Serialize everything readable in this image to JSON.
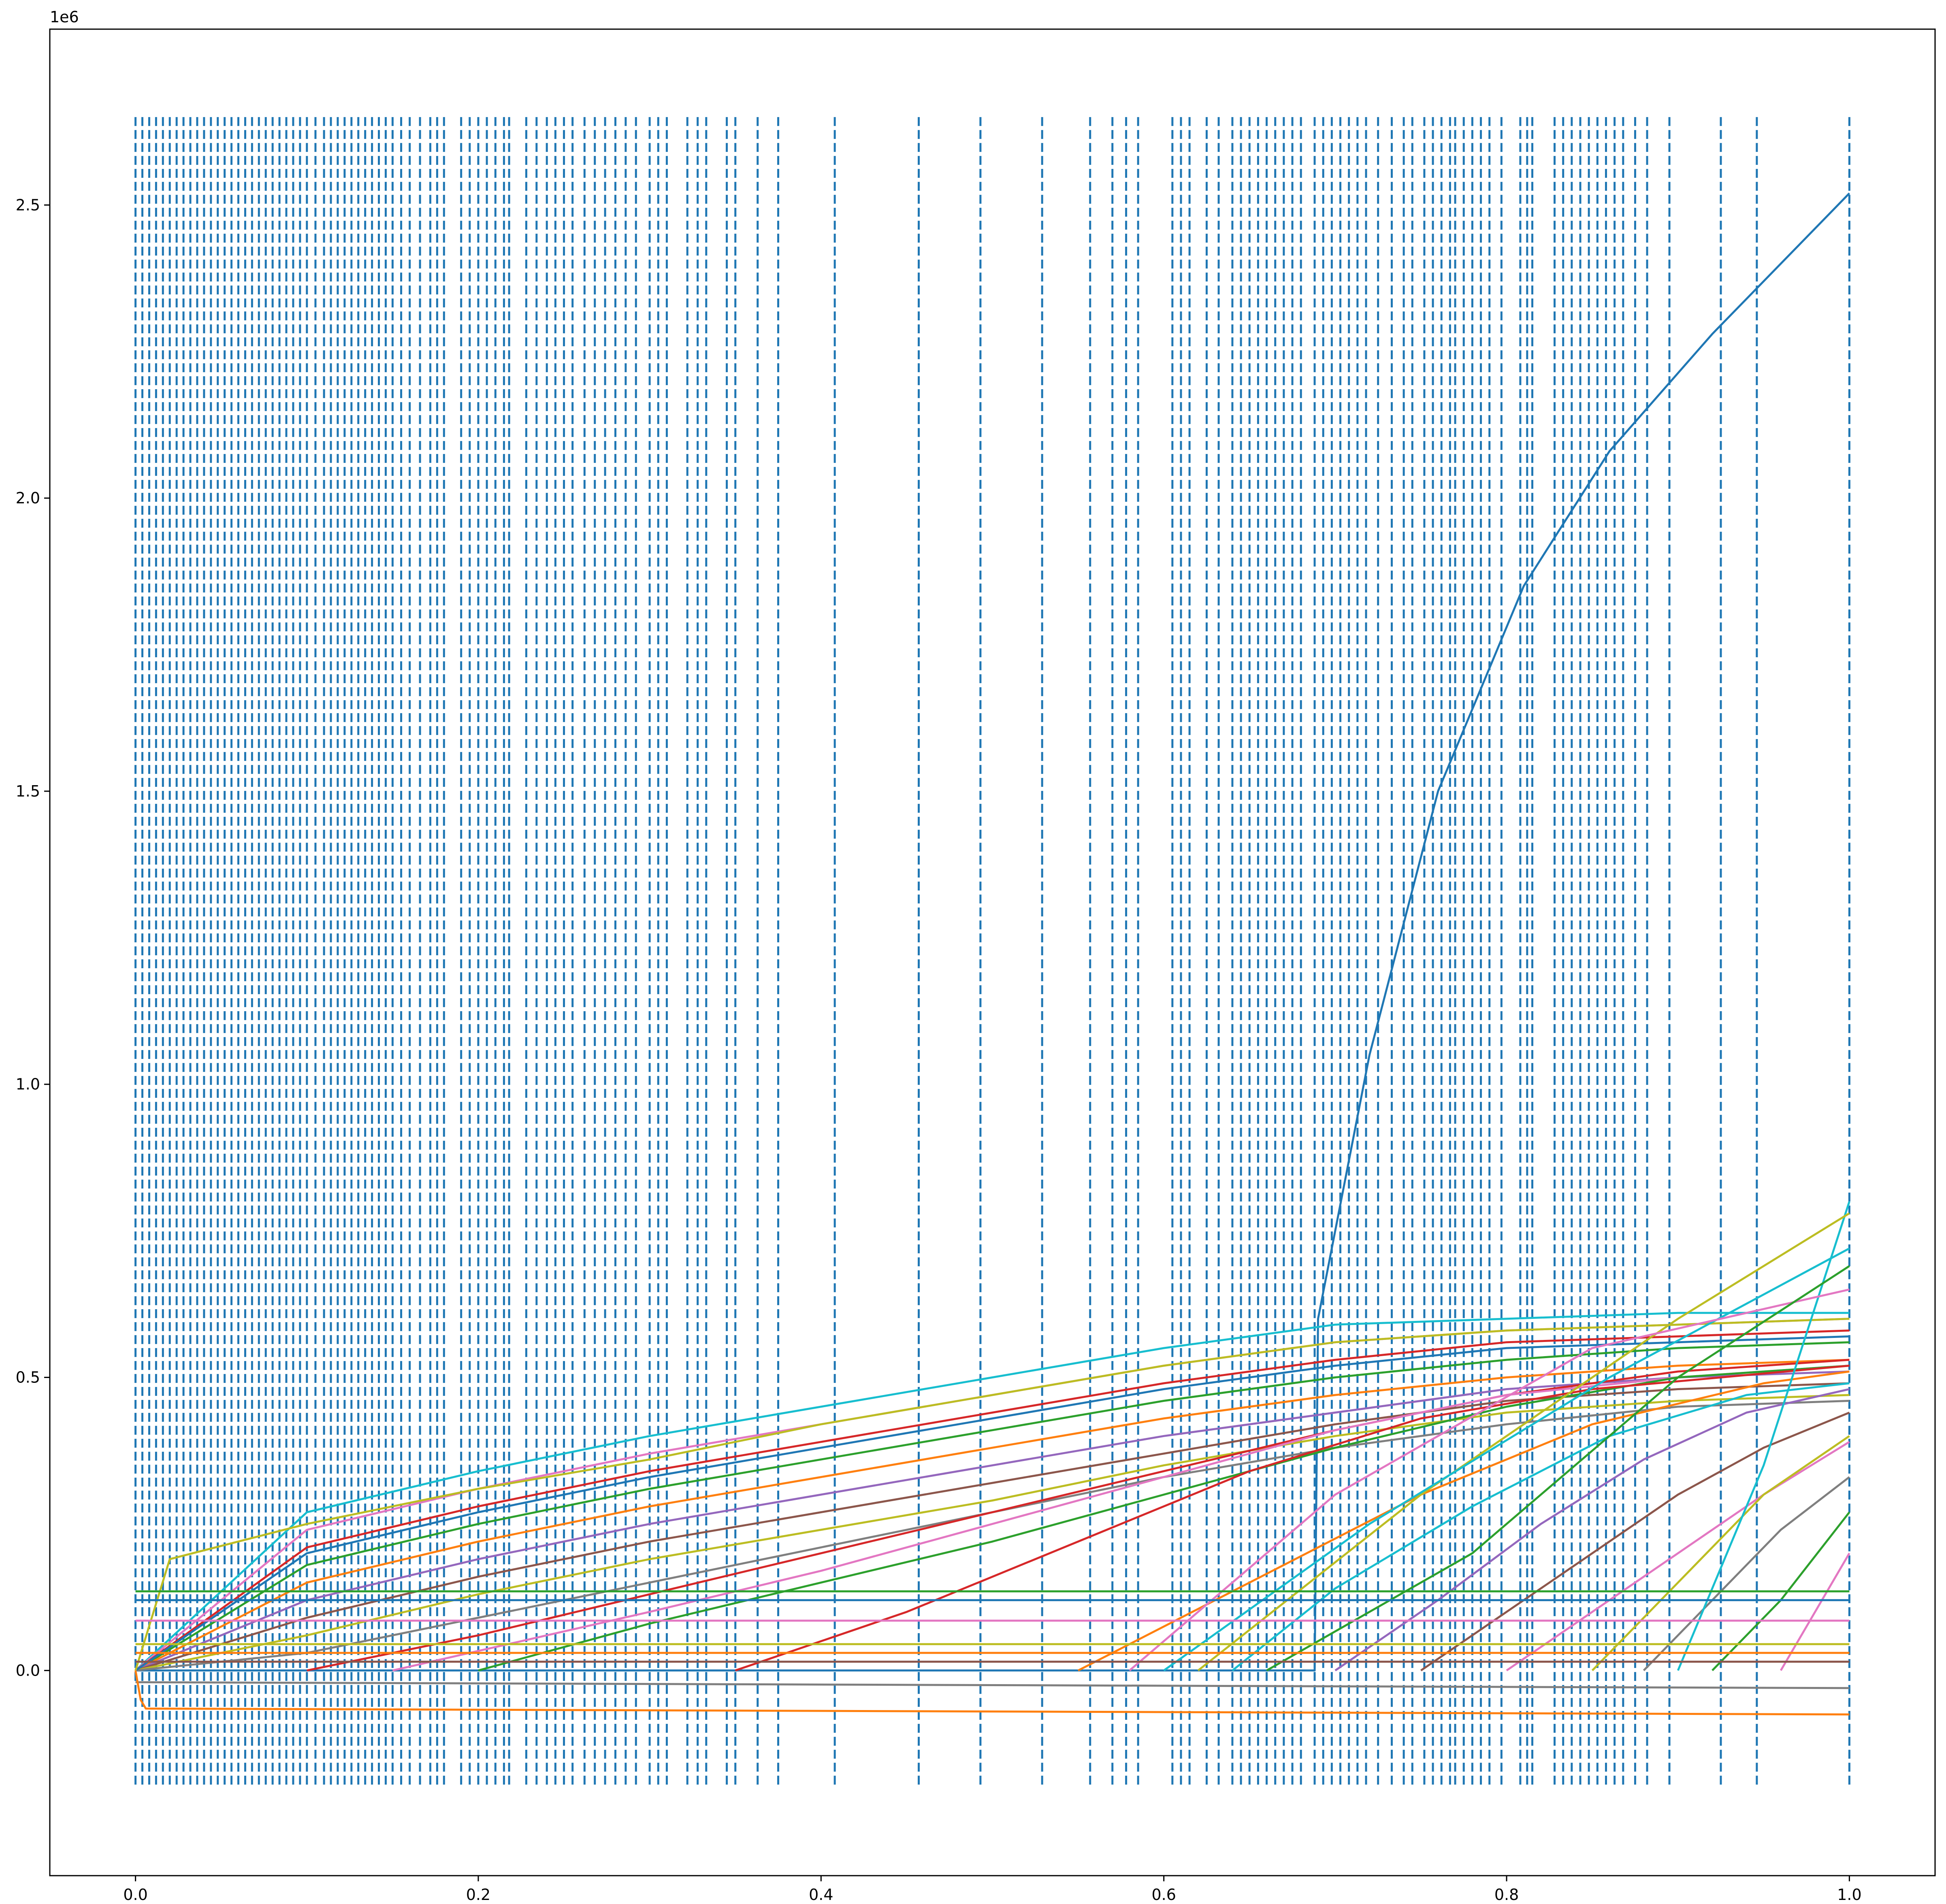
{
  "chart_data": {
    "type": "line",
    "title": "",
    "xlabel": "",
    "ylabel": "",
    "y_offset_label": "1e6",
    "xlim": [
      -0.05,
      1.05
    ],
    "ylim": [
      -0.35,
      2.8
    ],
    "y_unit_scale": 1000000,
    "x_ticks": [
      0.0,
      0.2,
      0.4,
      0.6,
      0.8,
      1.0
    ],
    "x_tick_labels": [
      "0.0",
      "0.2",
      "0.4",
      "0.6",
      "0.8",
      "1.0"
    ],
    "y_ticks": [
      0.0,
      0.5,
      1.0,
      1.5,
      2.0,
      2.5
    ],
    "y_tick_labels": [
      "0.0",
      "0.5",
      "1.0",
      "1.5",
      "2.0",
      "2.5"
    ],
    "grid": false,
    "legend": "none",
    "vertical_dashed_lines": {
      "color": "#1f77b4",
      "ymin": -0.2,
      "ymax": 2.65,
      "note_dense_region": [
        0.0,
        0.1
      ],
      "x": [
        0.0,
        0.004,
        0.008,
        0.012,
        0.016,
        0.02,
        0.024,
        0.028,
        0.032,
        0.036,
        0.04,
        0.044,
        0.048,
        0.052,
        0.056,
        0.06,
        0.064,
        0.068,
        0.072,
        0.076,
        0.08,
        0.084,
        0.088,
        0.092,
        0.096,
        0.1,
        0.105,
        0.11,
        0.114,
        0.118,
        0.122,
        0.126,
        0.13,
        0.134,
        0.138,
        0.142,
        0.146,
        0.15,
        0.155,
        0.16,
        0.166,
        0.172,
        0.176,
        0.18,
        0.19,
        0.195,
        0.2,
        0.205,
        0.21,
        0.215,
        0.218,
        0.228,
        0.234,
        0.24,
        0.245,
        0.25,
        0.255,
        0.262,
        0.268,
        0.274,
        0.28,
        0.286,
        0.292,
        0.3,
        0.305,
        0.31,
        0.322,
        0.328,
        0.333,
        0.345,
        0.35,
        0.363,
        0.375,
        0.408,
        0.457,
        0.493,
        0.529,
        0.557,
        0.57,
        0.578,
        0.585,
        0.605,
        0.61,
        0.615,
        0.625,
        0.632,
        0.64,
        0.645,
        0.65,
        0.655,
        0.66,
        0.665,
        0.67,
        0.675,
        0.68,
        0.688,
        0.693,
        0.698,
        0.703,
        0.708,
        0.713,
        0.718,
        0.725,
        0.733,
        0.74,
        0.745,
        0.752,
        0.757,
        0.762,
        0.767,
        0.77,
        0.775,
        0.78,
        0.785,
        0.79,
        0.797,
        0.808,
        0.812,
        0.815,
        0.828,
        0.833,
        0.838,
        0.843,
        0.848,
        0.853,
        0.858,
        0.863,
        0.868,
        0.875,
        0.882,
        0.895,
        0.925,
        0.946,
        1.0
      ]
    },
    "series": [
      {
        "color": "#1f77b4",
        "x": [
          0.0,
          0.688,
          0.69,
          0.72,
          0.76,
          0.81,
          0.86,
          0.92,
          1.0
        ],
        "values": [
          0.0,
          0.0,
          0.6,
          1.05,
          1.5,
          1.85,
          2.08,
          2.28,
          2.52
        ]
      },
      {
        "color": "#17becf",
        "x": [
          0.0,
          0.1,
          0.2,
          0.3,
          0.4,
          0.5,
          0.6,
          0.7,
          0.8,
          0.9,
          1.0
        ],
        "values": [
          0.0,
          0.27,
          0.34,
          0.4,
          0.45,
          0.5,
          0.55,
          0.59,
          0.6,
          0.61,
          0.61
        ]
      },
      {
        "color": "#e377c2",
        "x": [
          0.0,
          0.1,
          0.2,
          0.3,
          0.4,
          0.5,
          0.6,
          0.7,
          0.8,
          0.9,
          1.0
        ],
        "values": [
          0.0,
          0.24,
          0.31,
          0.37,
          0.42,
          0.47,
          0.52,
          0.56,
          0.58,
          0.59,
          0.6
        ]
      },
      {
        "color": "#d62728",
        "x": [
          0.0,
          0.1,
          0.2,
          0.3,
          0.4,
          0.5,
          0.6,
          0.7,
          0.8,
          0.9,
          1.0
        ],
        "values": [
          0.0,
          0.21,
          0.28,
          0.34,
          0.39,
          0.44,
          0.49,
          0.53,
          0.56,
          0.57,
          0.58
        ]
      },
      {
        "color": "#2ca02c",
        "x": [
          0.0,
          0.1,
          0.2,
          0.3,
          0.4,
          0.5,
          0.6,
          0.7,
          0.8,
          0.9,
          1.0
        ],
        "values": [
          0.0,
          0.18,
          0.25,
          0.31,
          0.36,
          0.41,
          0.46,
          0.5,
          0.53,
          0.55,
          0.56
        ]
      },
      {
        "color": "#ff7f0e",
        "x": [
          0.0,
          0.1,
          0.2,
          0.3,
          0.4,
          0.5,
          0.6,
          0.7,
          0.8,
          0.9,
          1.0
        ],
        "values": [
          0.0,
          0.15,
          0.22,
          0.28,
          0.33,
          0.38,
          0.43,
          0.47,
          0.5,
          0.52,
          0.53
        ]
      },
      {
        "color": "#9467bd",
        "x": [
          0.0,
          0.1,
          0.2,
          0.3,
          0.4,
          0.5,
          0.6,
          0.7,
          0.8,
          0.9,
          1.0
        ],
        "values": [
          0.0,
          0.12,
          0.19,
          0.25,
          0.3,
          0.35,
          0.4,
          0.44,
          0.48,
          0.5,
          0.51
        ]
      },
      {
        "color": "#8c564b",
        "x": [
          0.0,
          0.1,
          0.2,
          0.3,
          0.4,
          0.5,
          0.6,
          0.7,
          0.8,
          0.9,
          1.0
        ],
        "values": [
          0.0,
          0.09,
          0.16,
          0.22,
          0.27,
          0.32,
          0.37,
          0.42,
          0.46,
          0.48,
          0.49
        ]
      },
      {
        "color": "#bcbd22",
        "x": [
          0.0,
          0.1,
          0.2,
          0.3,
          0.4,
          0.5,
          0.6,
          0.7,
          0.8,
          0.9,
          1.0
        ],
        "values": [
          0.0,
          0.06,
          0.13,
          0.19,
          0.24,
          0.29,
          0.35,
          0.4,
          0.44,
          0.46,
          0.47
        ]
      },
      {
        "color": "#7f7f7f",
        "x": [
          0.0,
          0.1,
          0.2,
          0.3,
          0.4,
          0.5,
          0.6,
          0.7,
          0.8,
          0.9,
          1.0
        ],
        "values": [
          0.0,
          0.03,
          0.09,
          0.15,
          0.21,
          0.27,
          0.33,
          0.38,
          0.42,
          0.45,
          0.46
        ]
      },
      {
        "color": "#1f77b4",
        "x": [
          0.0,
          0.1,
          0.2,
          0.3,
          0.4,
          0.5,
          0.6,
          0.7,
          0.8,
          0.9,
          1.0
        ],
        "values": [
          0.0,
          0.2,
          0.27,
          0.33,
          0.38,
          0.43,
          0.48,
          0.52,
          0.55,
          0.56,
          0.57
        ]
      },
      {
        "color": "#bcbd22",
        "x": [
          0.0,
          0.02,
          0.1,
          0.2,
          0.3,
          0.4,
          0.5,
          0.6,
          0.7,
          0.8,
          0.9,
          1.0
        ],
        "values": [
          0.0,
          0.19,
          0.25,
          0.31,
          0.36,
          0.42,
          0.47,
          0.52,
          0.56,
          0.58,
          0.59,
          0.6
        ]
      },
      {
        "color": "#d62728",
        "x": [
          0.1,
          0.2,
          0.3,
          0.4,
          0.5,
          0.6,
          0.7,
          0.8,
          0.9,
          1.0
        ],
        "values": [
          0.0,
          0.06,
          0.13,
          0.2,
          0.27,
          0.34,
          0.41,
          0.47,
          0.51,
          0.53
        ]
      },
      {
        "color": "#e377c2",
        "x": [
          0.15,
          0.3,
          0.4,
          0.5,
          0.6,
          0.7,
          0.8,
          0.9,
          1.0
        ],
        "values": [
          0.0,
          0.1,
          0.17,
          0.25,
          0.33,
          0.41,
          0.47,
          0.5,
          0.52
        ]
      },
      {
        "color": "#2ca02c",
        "x": [
          0.2,
          0.3,
          0.4,
          0.5,
          0.6,
          0.7,
          0.8,
          0.9,
          1.0
        ],
        "values": [
          0.0,
          0.08,
          0.15,
          0.22,
          0.3,
          0.38,
          0.45,
          0.5,
          0.52
        ]
      },
      {
        "color": "#d62728",
        "x": [
          0.35,
          0.45,
          0.55,
          0.65,
          0.75,
          0.85,
          1.0
        ],
        "values": [
          0.0,
          0.1,
          0.22,
          0.34,
          0.43,
          0.48,
          0.52
        ]
      },
      {
        "color": "#ff7f0e",
        "x": [
          0.55,
          0.65,
          0.75,
          0.85,
          0.95,
          1.0
        ],
        "values": [
          0.0,
          0.15,
          0.3,
          0.42,
          0.49,
          0.51
        ]
      },
      {
        "color": "#17becf",
        "x": [
          0.64,
          0.7,
          0.78,
          0.86,
          0.94,
          1.0
        ],
        "values": [
          0.0,
          0.14,
          0.28,
          0.4,
          0.47,
          0.49
        ]
      },
      {
        "color": "#9467bd",
        "x": [
          0.7,
          0.76,
          0.82,
          0.88,
          0.94,
          1.0
        ],
        "values": [
          0.0,
          0.12,
          0.25,
          0.36,
          0.44,
          0.48
        ]
      },
      {
        "color": "#8c564b",
        "x": [
          0.75,
          0.8,
          0.85,
          0.9,
          0.95,
          1.0
        ],
        "values": [
          0.0,
          0.1,
          0.2,
          0.3,
          0.38,
          0.44
        ]
      },
      {
        "color": "#e377c2",
        "x": [
          0.8,
          0.85,
          0.9,
          0.95,
          1.0
        ],
        "values": [
          0.0,
          0.1,
          0.2,
          0.3,
          0.39
        ]
      },
      {
        "color": "#bcbd22",
        "x": [
          0.85,
          0.9,
          0.95,
          1.0
        ],
        "values": [
          0.0,
          0.15,
          0.3,
          0.4
        ]
      },
      {
        "color": "#7f7f7f",
        "x": [
          0.88,
          0.92,
          0.96,
          1.0
        ],
        "values": [
          0.0,
          0.12,
          0.24,
          0.33
        ]
      },
      {
        "color": "#17becf",
        "x": [
          0.9,
          0.95,
          1.0
        ],
        "values": [
          0.0,
          0.35,
          0.8
        ]
      },
      {
        "color": "#2ca02c",
        "x": [
          0.92,
          0.96,
          1.0
        ],
        "values": [
          0.0,
          0.12,
          0.27
        ]
      },
      {
        "color": "#e377c2",
        "x": [
          0.96,
          1.0
        ],
        "values": [
          0.0,
          0.2
        ]
      },
      {
        "color": "#bcbd22",
        "x": [
          0.62,
          0.75,
          0.9,
          1.0
        ],
        "values": [
          0.0,
          0.3,
          0.6,
          0.78
        ]
      },
      {
        "color": "#17becf",
        "x": [
          0.6,
          0.72,
          0.86,
          1.0
        ],
        "values": [
          0.0,
          0.25,
          0.5,
          0.72
        ]
      },
      {
        "color": "#e377c2",
        "x": [
          0.58,
          0.7,
          0.85,
          1.0
        ],
        "values": [
          0.0,
          0.3,
          0.55,
          0.65
        ]
      },
      {
        "color": "#2ca02c",
        "x": [
          0.66,
          0.78,
          0.9,
          1.0
        ],
        "values": [
          0.0,
          0.2,
          0.5,
          0.69
        ]
      },
      {
        "color": "#1f77b4",
        "x": [
          0.0,
          1.0
        ],
        "values": [
          0.12,
          0.12
        ]
      },
      {
        "color": "#2ca02c",
        "x": [
          0.0,
          1.0
        ],
        "values": [
          0.135,
          0.135
        ]
      },
      {
        "color": "#e377c2",
        "x": [
          0.0,
          1.0
        ],
        "values": [
          0.085,
          0.085
        ]
      },
      {
        "color": "#bcbd22",
        "x": [
          0.0,
          1.0
        ],
        "values": [
          0.045,
          0.045
        ]
      },
      {
        "color": "#ff7f0e",
        "x": [
          0.0,
          1.0
        ],
        "values": [
          0.03,
          0.03
        ]
      },
      {
        "color": "#8c564b",
        "x": [
          0.0,
          1.0
        ],
        "values": [
          0.015,
          0.015
        ]
      },
      {
        "color": "#7f7f7f",
        "x": [
          0.0,
          0.5,
          1.0
        ],
        "values": [
          -0.02,
          -0.025,
          -0.03
        ]
      },
      {
        "color": "#ff7f0e",
        "x": [
          0.0,
          0.003,
          0.006,
          1.0
        ],
        "values": [
          0.0,
          -0.05,
          -0.065,
          -0.075
        ]
      }
    ]
  }
}
